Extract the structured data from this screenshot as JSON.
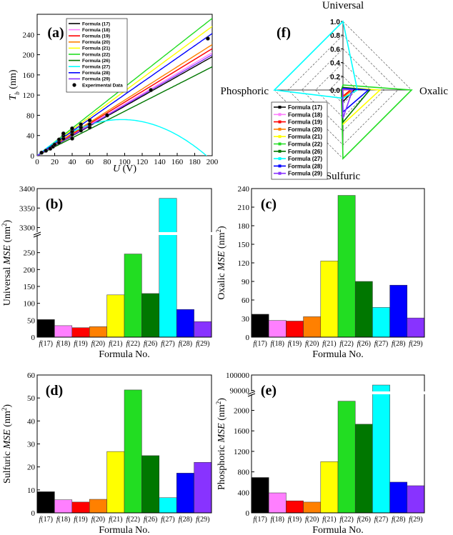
{
  "colors": {
    "f17": "#000000",
    "f18": "#ff7fff",
    "f19": "#ff0000",
    "f20": "#ff8000",
    "f21": "#ffff00",
    "f22": "#22dd22",
    "f26": "#007700",
    "f27": "#00ffff",
    "f28": "#0000ff",
    "f29": "#8833ff",
    "exp": "#000000"
  },
  "chart_data": [
    {
      "id": "a",
      "type": "line",
      "panel_label": "(a)",
      "xlabel": "U (V)",
      "ylabel": "T_b (nm)",
      "xlim": [
        0,
        200
      ],
      "ylim": [
        0,
        280
      ],
      "xticks": [
        "0",
        "20",
        "40",
        "60",
        "80",
        "100",
        "120",
        "140",
        "160",
        "180",
        "200"
      ],
      "yticks": [
        "0",
        "40",
        "80",
        "120",
        "160",
        "200",
        "240"
      ],
      "legend_position": "top-left",
      "series": [
        {
          "name": "Formula (17)",
          "key": "f17",
          "slope": 0.98
        },
        {
          "name": "Formula (18)",
          "key": "f18",
          "slope": 1.02
        },
        {
          "name": "Formula (19)",
          "key": "f19",
          "slope": 1.06
        },
        {
          "name": "Formula (20)",
          "key": "f20",
          "slope": 1.1
        },
        {
          "name": "Formula (21)",
          "key": "f21",
          "slope": 1.28
        },
        {
          "name": "Formula (22)",
          "key": "f22",
          "slope": 1.36
        },
        {
          "name": "Formula (26)",
          "key": "f26",
          "slope": 0.88
        },
        {
          "name": "Formula (27)",
          "key": "f27",
          "model": "parabola",
          "a": 1.48,
          "b": 0.00765
        },
        {
          "name": "Formula (28)",
          "key": "f28",
          "slope": 1.21
        },
        {
          "name": "Formula (29)",
          "key": "f29",
          "slope": 1.0
        }
      ],
      "experimental": {
        "name": "Experimental Data",
        "x": [
          5,
          10,
          15,
          18,
          20,
          25,
          25,
          30,
          30,
          30,
          40,
          40,
          40,
          40,
          50,
          50,
          50,
          60,
          60,
          60,
          80,
          130,
          195
        ],
        "y": [
          6,
          10,
          14,
          18,
          22,
          26,
          32,
          34,
          40,
          44,
          34,
          42,
          48,
          54,
          50,
          56,
          62,
          56,
          62,
          70,
          80,
          130,
          232
        ]
      }
    },
    {
      "id": "b",
      "type": "bar",
      "panel_label": "(b)",
      "ylabel": "Universal MSE (nm²)",
      "xlabel": "Formula No.",
      "broken_axis": true,
      "ylim_lower": [
        0,
        300
      ],
      "ylim_upper": [
        3290,
        3400
      ],
      "yticks_lower": [
        "0",
        "50",
        "100",
        "150",
        "200",
        "250"
      ],
      "yticks_upper": [
        "3300",
        "3350",
        "3400"
      ],
      "categories": [
        "f (17)",
        "f (18)",
        "f (19)",
        "f (20)",
        "f (21)",
        "f (22)",
        "f (26)",
        "f (27)",
        "f (28)",
        "f (29)"
      ],
      "values": [
        52,
        34,
        28,
        31,
        125,
        246,
        129,
        3375,
        82,
        46
      ]
    },
    {
      "id": "c",
      "type": "bar",
      "panel_label": "(c)",
      "ylabel": "Oxalic MSE (nm²)",
      "xlabel": "Formula No.",
      "ylim": [
        0,
        240
      ],
      "yticks": [
        "0",
        "30",
        "60",
        "90",
        "120",
        "150",
        "180",
        "210",
        "240"
      ],
      "categories": [
        "f (17)",
        "f (18)",
        "f (19)",
        "f (20)",
        "f (21)",
        "f (22)",
        "f (26)",
        "f (27)",
        "f (28)",
        "f (29)"
      ],
      "values": [
        37,
        27,
        26,
        33,
        123,
        229,
        90,
        48,
        84,
        31
      ]
    },
    {
      "id": "d",
      "type": "bar",
      "panel_label": "(d)",
      "ylabel": "Sulfuric MSE (nm²)",
      "xlabel": "Formula No.",
      "ylim": [
        0,
        60
      ],
      "yticks": [
        "0",
        "10",
        "20",
        "30",
        "40",
        "50",
        "60"
      ],
      "categories": [
        "f (17)",
        "f (18)",
        "f (19)",
        "f (20)",
        "f (21)",
        "f (22)",
        "f (26)",
        "f (27)",
        "f (28)",
        "f (29)"
      ],
      "values": [
        9.2,
        5.7,
        4.7,
        5.9,
        26.7,
        53.5,
        24.9,
        6.6,
        17.3,
        22.0
      ]
    },
    {
      "id": "e",
      "type": "bar",
      "panel_label": "(e)",
      "ylabel": "Phosphoric MSE (nm²)",
      "xlabel": "Formula No.",
      "broken_axis": true,
      "ylim_lower": [
        0,
        2300
      ],
      "ylim_upper": [
        89800,
        100000
      ],
      "yticks_lower": [
        "0",
        "400",
        "800",
        "1200",
        "1600",
        "2000"
      ],
      "yticks_upper": [
        "90000",
        "100000"
      ],
      "categories": [
        "f (17)",
        "f (18)",
        "f (19)",
        "f (20)",
        "f (21)",
        "f (22)",
        "f (26)",
        "f (27)",
        "f (28)",
        "f (29)"
      ],
      "values": [
        690,
        390,
        235,
        210,
        1000,
        2180,
        1730,
        93500,
        600,
        530
      ]
    },
    {
      "id": "f",
      "type": "radar",
      "panel_label": "(f)",
      "axes": [
        "Universal",
        "Oxalic",
        "Sulfuric",
        "Phosphoric"
      ],
      "rticks": [
        "0.0",
        "0.2",
        "0.4",
        "0.6",
        "0.8",
        "1.0"
      ],
      "series": [
        {
          "name": "Formula (17)",
          "key": "f17",
          "values": [
            0.015,
            0.16,
            0.17,
            0.007
          ]
        },
        {
          "name": "Formula (18)",
          "key": "f18",
          "values": [
            0.01,
            0.12,
            0.11,
            0.004
          ]
        },
        {
          "name": "Formula (19)",
          "key": "f19",
          "values": [
            0.008,
            0.11,
            0.09,
            0.003
          ]
        },
        {
          "name": "Formula (20)",
          "key": "f20",
          "values": [
            0.009,
            0.14,
            0.11,
            0.002
          ]
        },
        {
          "name": "Formula (21)",
          "key": "f21",
          "values": [
            0.037,
            0.54,
            0.5,
            0.011
          ]
        },
        {
          "name": "Formula (22)",
          "key": "f22",
          "values": [
            0.073,
            1.0,
            1.0,
            0.023
          ]
        },
        {
          "name": "Formula (26)",
          "key": "f26",
          "values": [
            0.038,
            0.39,
            0.47,
            0.018
          ]
        },
        {
          "name": "Formula (27)",
          "key": "f27",
          "values": [
            1.0,
            0.21,
            0.12,
            1.0
          ]
        },
        {
          "name": "Formula (28)",
          "key": "f28",
          "values": [
            0.024,
            0.37,
            0.32,
            0.006
          ]
        },
        {
          "name": "Formula (29)",
          "key": "f29",
          "values": [
            0.014,
            0.14,
            0.41,
            0.006
          ]
        }
      ]
    }
  ]
}
